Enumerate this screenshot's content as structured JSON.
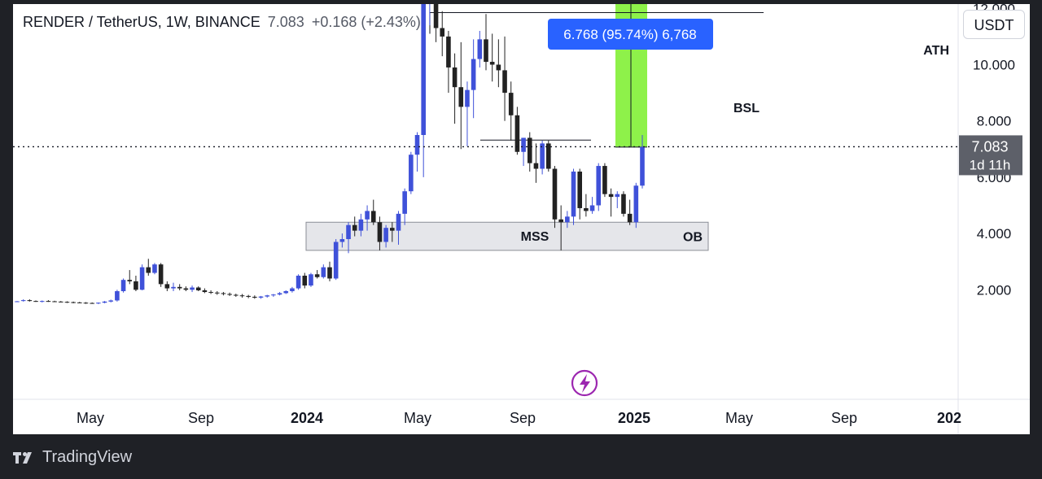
{
  "header": {
    "symbol": "RENDER / TetherUS, 1W, BINANCE",
    "price": "7.083",
    "change": "+0.168 (+2.43%)"
  },
  "currency_button": "USDT",
  "brand": "TradingView",
  "colors": {
    "bull": "#3f51d9",
    "bear": "#222222",
    "ath_label_bg": "#000000",
    "measure_fill": "#8ef14a",
    "measure_label_bg": "#2962ff",
    "ob_fill": "#e5e6ea",
    "price_label_bg": "#5d6069",
    "event_icon": "#9c27b0"
  },
  "chart_data": {
    "type": "candlestick",
    "timeframe": "1W",
    "y_scale": "linear",
    "y_ticks": [
      "2.000",
      "4.000",
      "6.000",
      "8.000",
      "10.000",
      "12.000"
    ],
    "x_ticks": [
      "May",
      "Sep",
      "2024",
      "May",
      "Sep",
      "2025",
      "May",
      "Sep",
      "202"
    ],
    "candles": [
      [
        1.58,
        1.6,
        1.56,
        1.59
      ],
      [
        1.6,
        1.66,
        1.58,
        1.63
      ],
      [
        1.63,
        1.66,
        1.58,
        1.6
      ],
      [
        1.6,
        1.62,
        1.57,
        1.58
      ],
      [
        1.58,
        1.62,
        1.55,
        1.6
      ],
      [
        1.6,
        1.63,
        1.57,
        1.59
      ],
      [
        1.59,
        1.61,
        1.56,
        1.58
      ],
      [
        1.58,
        1.6,
        1.55,
        1.57
      ],
      [
        1.57,
        1.59,
        1.53,
        1.56
      ],
      [
        1.56,
        1.58,
        1.52,
        1.55
      ],
      [
        1.55,
        1.57,
        1.52,
        1.54
      ],
      [
        1.54,
        1.56,
        1.5,
        1.53
      ],
      [
        1.53,
        1.55,
        1.5,
        1.52
      ],
      [
        1.52,
        1.55,
        1.49,
        1.54
      ],
      [
        1.54,
        1.6,
        1.52,
        1.58
      ],
      [
        1.58,
        1.65,
        1.55,
        1.62
      ],
      [
        1.62,
        2.0,
        1.58,
        1.95
      ],
      [
        1.95,
        2.4,
        1.9,
        2.35
      ],
      [
        2.35,
        2.7,
        2.2,
        2.3
      ],
      [
        2.3,
        2.5,
        1.95,
        2.0
      ],
      [
        2.0,
        2.9,
        1.98,
        2.8
      ],
      [
        2.8,
        3.1,
        2.5,
        2.6
      ],
      [
        2.6,
        2.95,
        2.55,
        2.9
      ],
      [
        2.9,
        2.95,
        2.1,
        2.2
      ],
      [
        2.2,
        2.3,
        1.95,
        2.05
      ],
      [
        2.05,
        2.25,
        1.95,
        2.1
      ],
      [
        2.1,
        2.2,
        1.98,
        2.05
      ],
      [
        2.05,
        2.12,
        1.95,
        2.0
      ],
      [
        2.0,
        2.15,
        1.92,
        2.08
      ],
      [
        2.08,
        2.12,
        1.95,
        1.98
      ],
      [
        1.98,
        2.05,
        1.88,
        1.92
      ],
      [
        1.92,
        1.98,
        1.85,
        1.9
      ],
      [
        1.9,
        1.95,
        1.82,
        1.88
      ],
      [
        1.88,
        1.92,
        1.8,
        1.85
      ],
      [
        1.85,
        1.9,
        1.78,
        1.82
      ],
      [
        1.82,
        1.86,
        1.75,
        1.8
      ],
      [
        1.8,
        1.85,
        1.72,
        1.78
      ],
      [
        1.78,
        1.82,
        1.7,
        1.75
      ],
      [
        1.75,
        1.8,
        1.68,
        1.72
      ],
      [
        1.72,
        1.78,
        1.68,
        1.76
      ],
      [
        1.76,
        1.82,
        1.72,
        1.8
      ],
      [
        1.8,
        1.85,
        1.75,
        1.83
      ],
      [
        1.83,
        1.92,
        1.8,
        1.88
      ],
      [
        1.88,
        1.98,
        1.85,
        1.95
      ],
      [
        1.95,
        2.1,
        1.9,
        2.05
      ],
      [
        2.05,
        2.55,
        2.0,
        2.5
      ],
      [
        2.5,
        2.6,
        2.05,
        2.15
      ],
      [
        2.15,
        2.6,
        2.1,
        2.55
      ],
      [
        2.55,
        2.7,
        2.4,
        2.45
      ],
      [
        2.45,
        2.9,
        2.4,
        2.8
      ],
      [
        2.8,
        3.0,
        2.3,
        2.4
      ],
      [
        2.4,
        3.8,
        2.35,
        3.7
      ],
      [
        3.7,
        4.0,
        3.5,
        3.8
      ],
      [
        3.8,
        4.4,
        3.3,
        4.3
      ],
      [
        4.3,
        4.6,
        3.9,
        4.1
      ],
      [
        4.1,
        4.7,
        3.9,
        4.5
      ],
      [
        4.5,
        5.0,
        4.1,
        4.8
      ],
      [
        4.8,
        5.2,
        4.3,
        4.4
      ],
      [
        4.4,
        4.6,
        3.4,
        3.7
      ],
      [
        3.7,
        4.3,
        3.5,
        4.2
      ],
      [
        4.2,
        4.4,
        3.7,
        4.1
      ],
      [
        4.1,
        4.8,
        3.6,
        4.7
      ],
      [
        4.7,
        5.6,
        4.3,
        5.5
      ],
      [
        5.5,
        6.9,
        5.4,
        6.8
      ],
      [
        6.8,
        7.6,
        6.2,
        7.5
      ],
      [
        7.5,
        12.4,
        6.0,
        12.3
      ],
      [
        12.3,
        13.7,
        11.4,
        13.6
      ],
      [
        13.6,
        13.8,
        10.8,
        11.3
      ],
      [
        11.3,
        11.9,
        10.3,
        11.0
      ],
      [
        11.0,
        11.2,
        9.0,
        9.9
      ],
      [
        9.9,
        10.4,
        7.9,
        9.2
      ],
      [
        9.2,
        10.8,
        7.0,
        8.5
      ],
      [
        8.5,
        9.4,
        7.1,
        9.1
      ],
      [
        9.1,
        10.9,
        8.1,
        10.2
      ],
      [
        10.2,
        11.2,
        9.9,
        10.9
      ],
      [
        10.9,
        11.8,
        9.8,
        10.1
      ],
      [
        10.1,
        11.1,
        9.4,
        10.0
      ],
      [
        10.0,
        10.9,
        9.2,
        9.8
      ],
      [
        9.8,
        11.0,
        8.0,
        9.0
      ],
      [
        9.0,
        9.4,
        7.3,
        8.2
      ],
      [
        8.2,
        8.5,
        6.8,
        6.9
      ],
      [
        6.9,
        7.4,
        6.4,
        7.4
      ],
      [
        7.4,
        7.6,
        6.2,
        6.5
      ],
      [
        6.5,
        7.2,
        5.8,
        6.3
      ],
      [
        6.3,
        7.3,
        6.1,
        7.2
      ],
      [
        7.2,
        7.3,
        6.2,
        6.3
      ],
      [
        6.3,
        6.4,
        4.2,
        4.5
      ],
      [
        4.5,
        5.0,
        3.4,
        4.4
      ],
      [
        4.4,
        4.8,
        4.2,
        4.6
      ],
      [
        4.6,
        6.3,
        4.3,
        6.2
      ],
      [
        6.2,
        6.3,
        4.5,
        4.9
      ],
      [
        4.9,
        5.4,
        4.6,
        4.8
      ],
      [
        4.8,
        5.3,
        4.7,
        5.0
      ],
      [
        5.0,
        6.5,
        4.8,
        6.4
      ],
      [
        6.4,
        6.5,
        5.3,
        5.4
      ],
      [
        5.4,
        5.6,
        4.6,
        5.3
      ],
      [
        5.3,
        5.5,
        4.9,
        5.4
      ],
      [
        5.4,
        5.5,
        4.6,
        4.7
      ],
      [
        4.7,
        5.2,
        4.3,
        4.4
      ],
      [
        4.4,
        5.8,
        4.2,
        5.7
      ],
      [
        5.7,
        7.5,
        5.6,
        7.08
      ]
    ],
    "current_price": "7.083",
    "countdown": "1d 11h",
    "levels": [
      {
        "label": "ATH",
        "price": "13.838"
      },
      {
        "label": "BSL",
        "price": 11.85
      },
      {
        "label": "MSS",
        "price": 7.32
      }
    ],
    "zones": [
      {
        "label": "OB",
        "top": 4.4,
        "bottom": 3.4
      }
    ],
    "measure": {
      "label": "6.768 (95.74%) 6,768",
      "from": 7.07,
      "to": 13.838
    }
  }
}
